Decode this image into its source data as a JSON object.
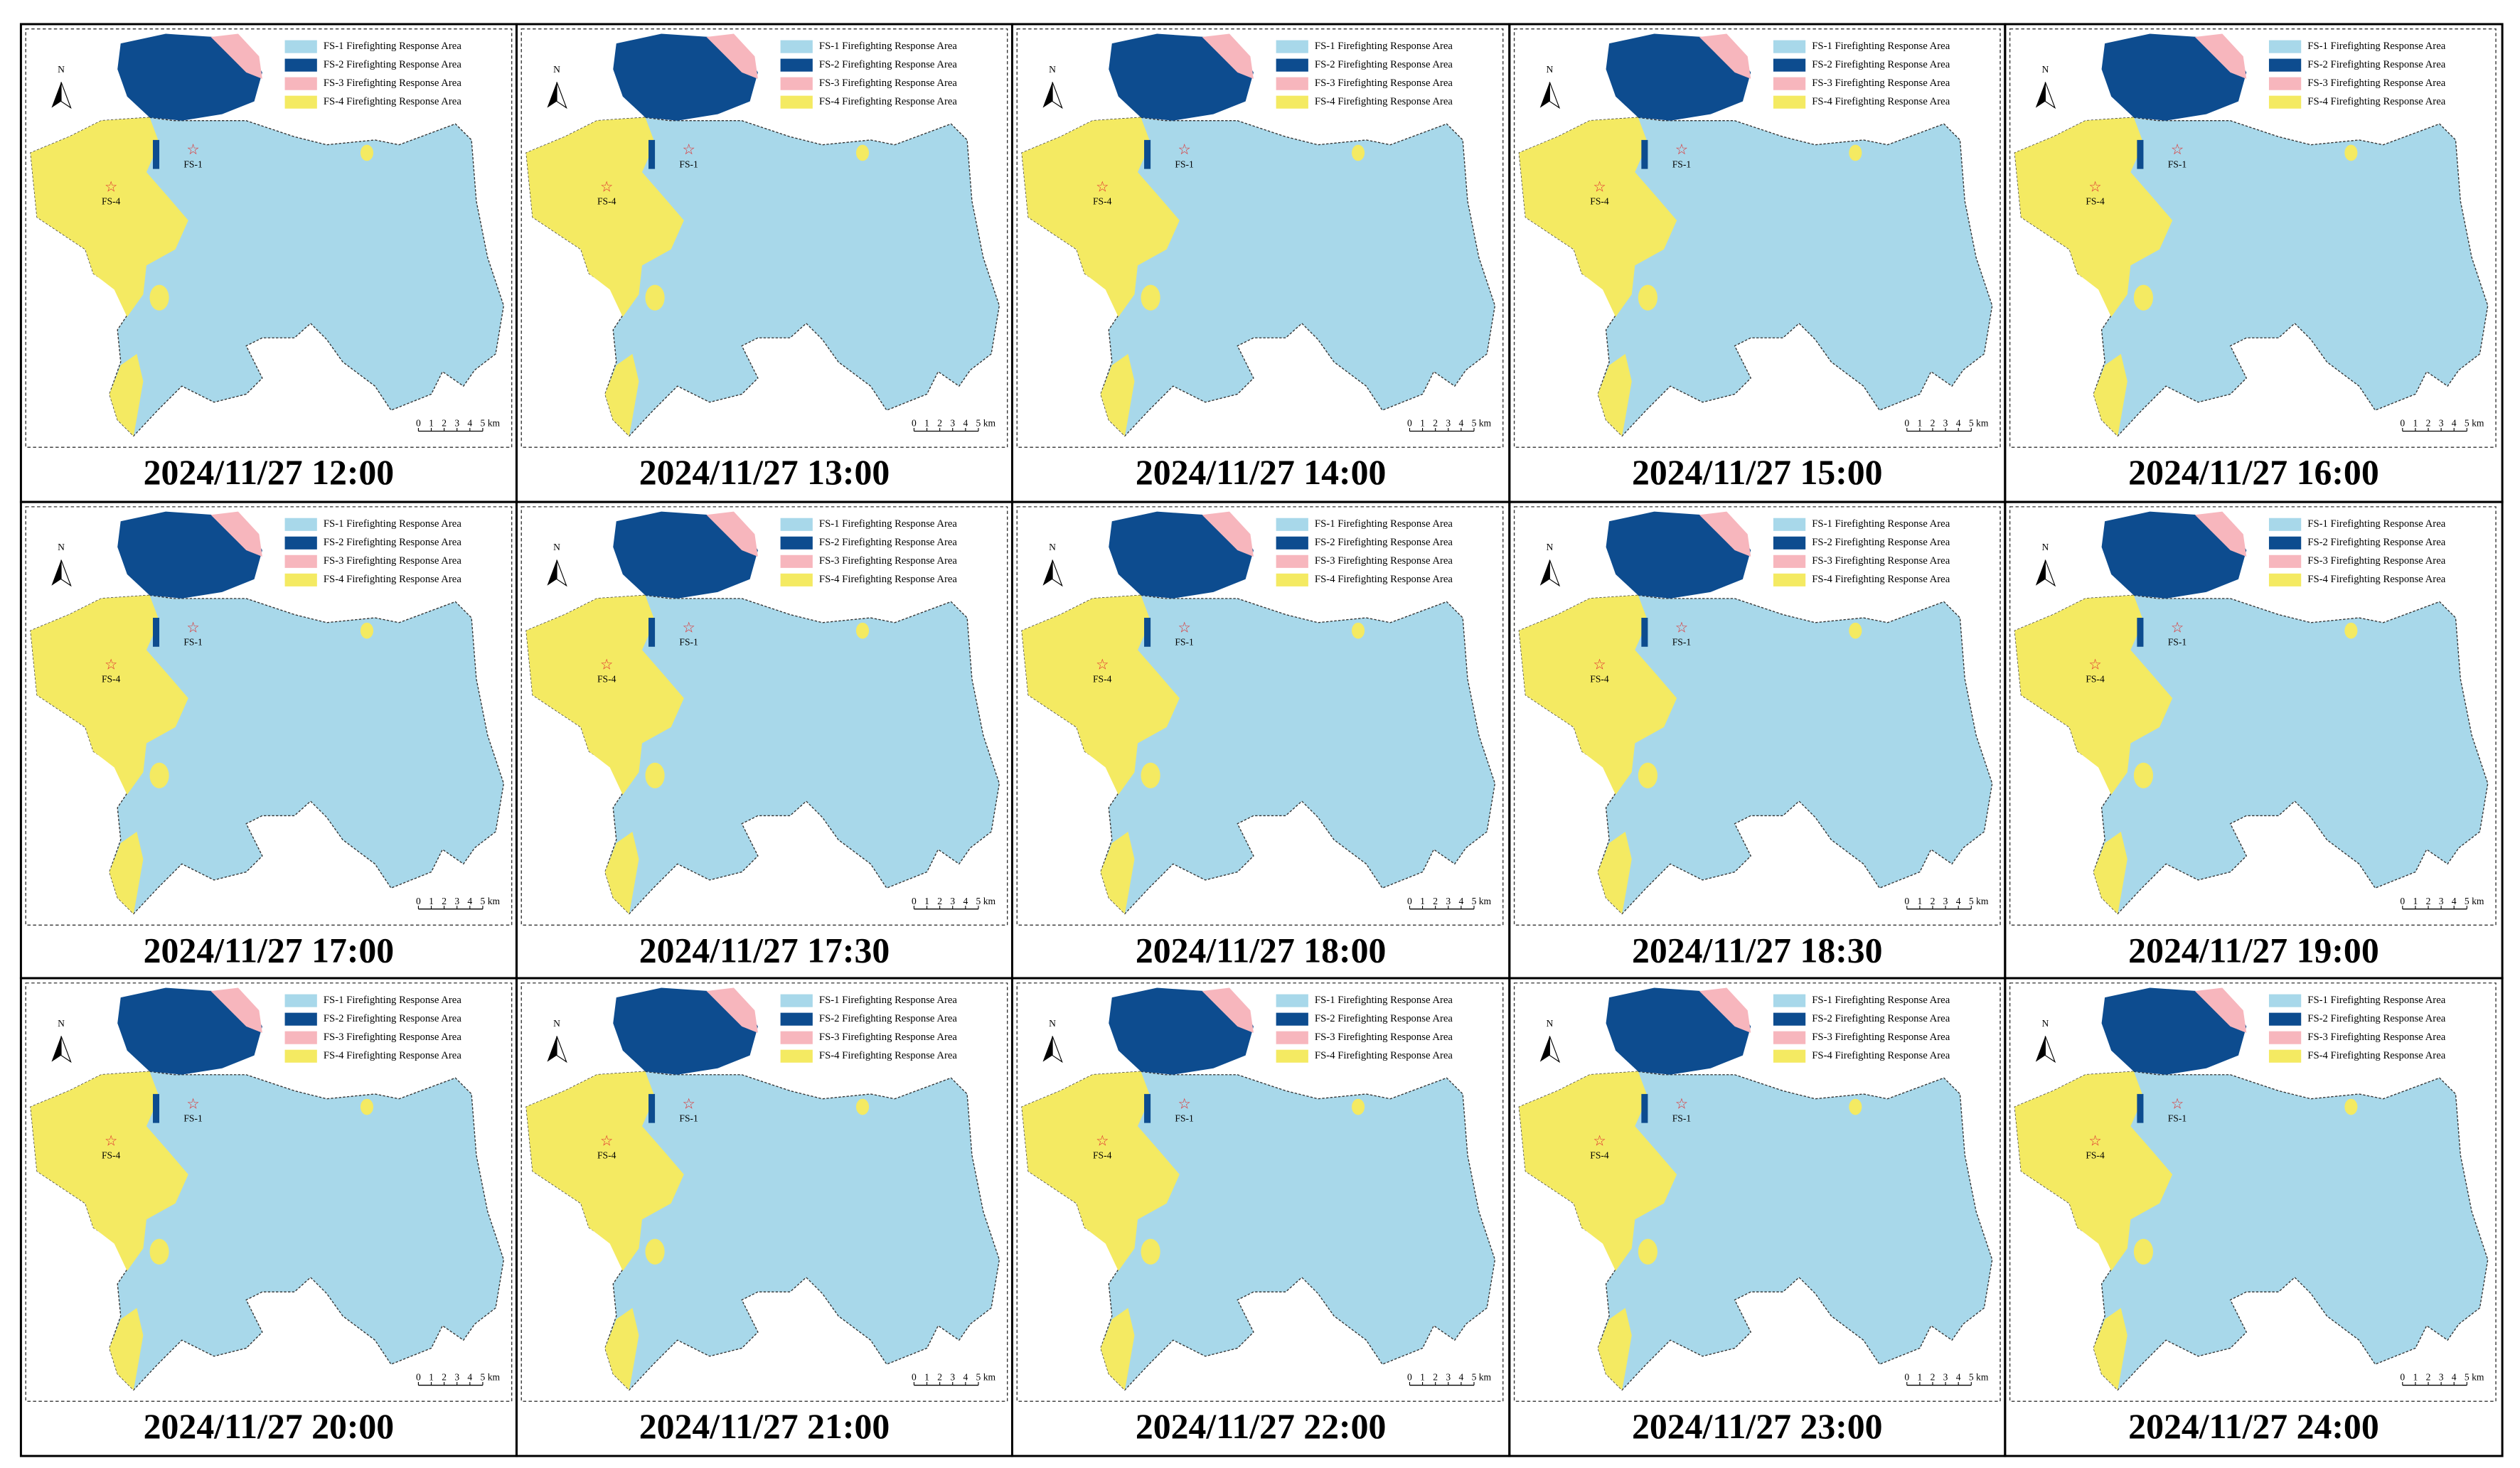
{
  "legend": [
    {
      "label": "FS-1 Firefighting Response Area",
      "color": "#a8d8ea"
    },
    {
      "label": "FS-2 Firefighting Response Area",
      "color": "#0d4c8f"
    },
    {
      "label": "FS-3 Firefighting Response Area",
      "color": "#f7b6bd"
    },
    {
      "label": "FS-4 Firefighting Response Area",
      "color": "#f4ea62"
    }
  ],
  "north": "N",
  "stations": [
    "FS-1",
    "FS-4"
  ],
  "scale_bar": {
    "ticks": [
      "0",
      "1",
      "2",
      "3",
      "4",
      "5"
    ],
    "unit": "km"
  },
  "panels": [
    {
      "caption": "2024/11/27 12:00"
    },
    {
      "caption": "2024/11/27 13:00"
    },
    {
      "caption": "2024/11/27 14:00"
    },
    {
      "caption": "2024/11/27 15:00"
    },
    {
      "caption": "2024/11/27 16:00"
    },
    {
      "caption": "2024/11/27 17:00"
    },
    {
      "caption": "2024/11/27 17:30"
    },
    {
      "caption": "2024/11/27 18:00"
    },
    {
      "caption": "2024/11/27 18:30"
    },
    {
      "caption": "2024/11/27 19:00"
    },
    {
      "caption": "2024/11/27 20:00"
    },
    {
      "caption": "2024/11/27 21:00"
    },
    {
      "caption": "2024/11/27 22:00"
    },
    {
      "caption": "2024/11/27 23:00"
    },
    {
      "caption": "2024/11/27 24:00"
    }
  ]
}
